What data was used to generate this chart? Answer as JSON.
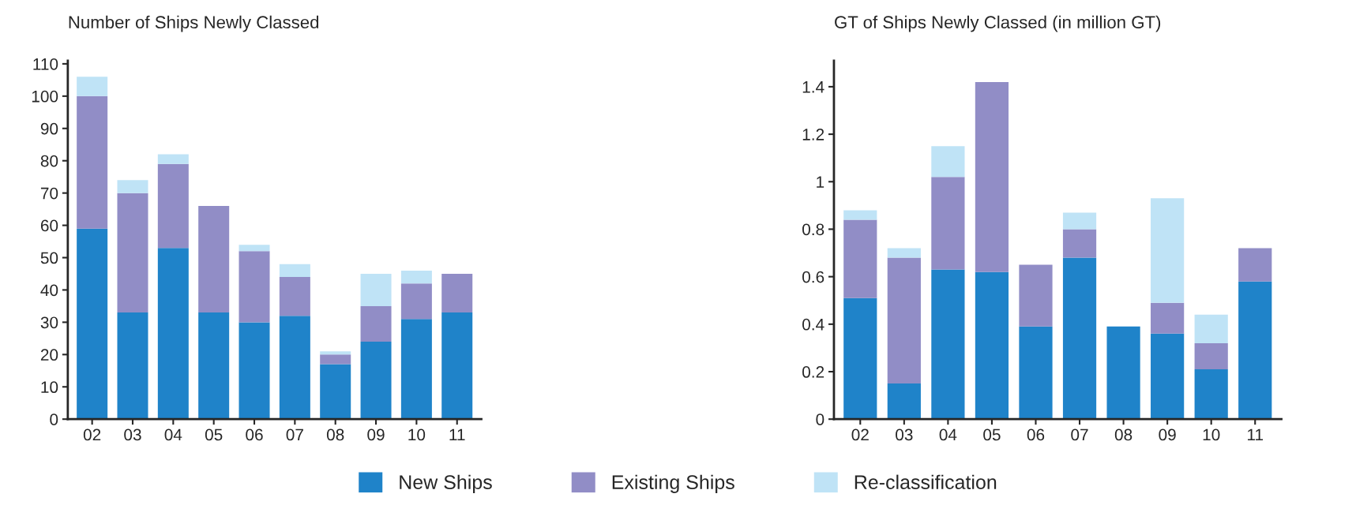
{
  "chart_data": [
    {
      "type": "bar",
      "title": "Number of Ships Newly Classed",
      "stacked": true,
      "categories": [
        "02",
        "03",
        "04",
        "05",
        "06",
        "07",
        "08",
        "09",
        "10",
        "11"
      ],
      "series": [
        {
          "name": "New Ships",
          "color": "#1f83c9",
          "values": [
            59,
            33,
            53,
            33,
            30,
            32,
            17,
            24,
            31,
            33
          ]
        },
        {
          "name": "Existing Ships",
          "color": "#918dc6",
          "values": [
            41,
            37,
            26,
            33,
            22,
            12,
            3,
            11,
            11,
            12
          ]
        },
        {
          "name": "Re-classification",
          "color": "#bfe3f6",
          "values": [
            6,
            4,
            3,
            0,
            2,
            4,
            1,
            10,
            4,
            0
          ]
        }
      ],
      "ylim": [
        0,
        111
      ],
      "yticks": [
        0,
        10,
        20,
        30,
        40,
        50,
        60,
        70,
        80,
        90,
        100,
        110
      ],
      "grid": false,
      "legend": "bottom"
    },
    {
      "type": "bar",
      "title": "GT of Ships Newly Classed (in million GT)",
      "stacked": true,
      "categories": [
        "02",
        "03",
        "04",
        "05",
        "06",
        "07",
        "08",
        "09",
        "10",
        "11"
      ],
      "series": [
        {
          "color": "#1f83c9",
          "values": [
            0.51,
            0.15,
            0.63,
            0.62,
            0.39,
            0.68,
            0.39,
            0.36,
            0.21,
            0.58
          ]
        },
        {
          "color": "#918dc6",
          "values": [
            0.33,
            0.53,
            0.39,
            0.8,
            0.26,
            0.12,
            0,
            0.13,
            0.11,
            0.14
          ]
        },
        {
          "color": "#bfe3f6",
          "values": [
            0.04,
            0.04,
            0.13,
            0,
            0,
            0.07,
            0,
            0.44,
            0.12,
            0
          ]
        }
      ],
      "ylim": [
        0,
        1.51
      ],
      "yticks": [
        0,
        0.2,
        0.4,
        0.6,
        0.8,
        1,
        1.2,
        1.4
      ],
      "grid": false
    }
  ]
}
